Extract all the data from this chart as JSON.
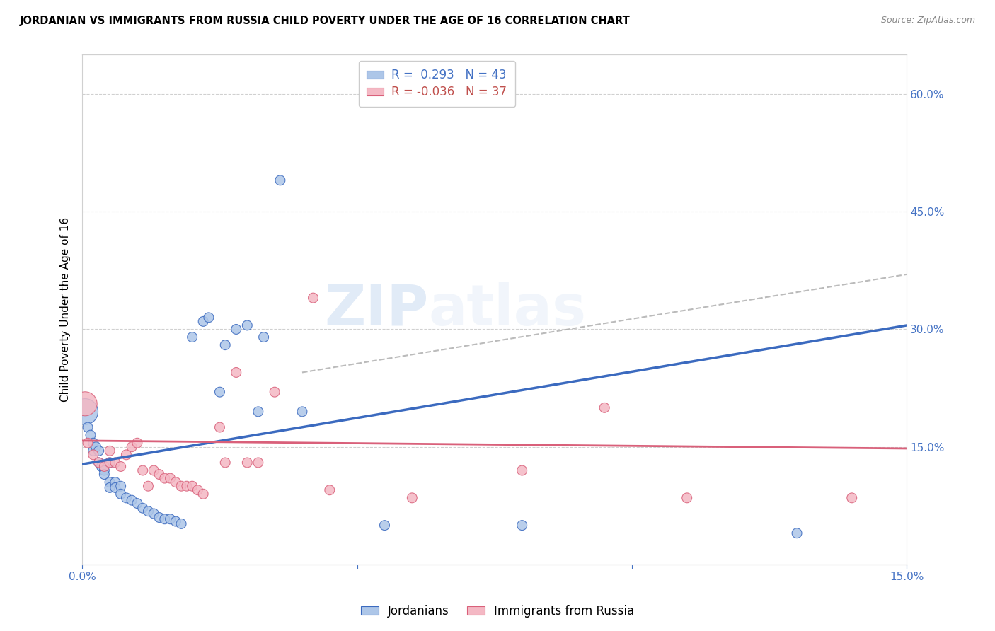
{
  "title": "JORDANIAN VS IMMIGRANTS FROM RUSSIA CHILD POVERTY UNDER THE AGE OF 16 CORRELATION CHART",
  "source": "Source: ZipAtlas.com",
  "ylabel": "Child Poverty Under the Age of 16",
  "xlim": [
    0.0,
    0.15
  ],
  "ylim": [
    0.0,
    0.65
  ],
  "x_ticks": [
    0.0,
    0.05,
    0.1,
    0.15
  ],
  "x_tick_labels": [
    "0.0%",
    "",
    "",
    "15.0%"
  ],
  "y_ticks_right": [
    0.15,
    0.3,
    0.45,
    0.6
  ],
  "y_tick_labels_right": [
    "15.0%",
    "30.0%",
    "45.0%",
    "60.0%"
  ],
  "legend_label1": "Jordanians",
  "legend_label2": "Immigrants from Russia",
  "R1": 0.293,
  "N1": 43,
  "R2": -0.036,
  "N2": 37,
  "color_blue": "#adc6e8",
  "color_pink": "#f4b8c4",
  "color_blue_line": "#3b6abf",
  "color_pink_line": "#d9607a",
  "color_blue_text": "#4472c4",
  "color_pink_text": "#c0504d",
  "scatter_blue": [
    [
      0.0005,
      0.195
    ],
    [
      0.001,
      0.175
    ],
    [
      0.0015,
      0.165
    ],
    [
      0.002,
      0.155
    ],
    [
      0.002,
      0.145
    ],
    [
      0.0025,
      0.15
    ],
    [
      0.003,
      0.145
    ],
    [
      0.003,
      0.13
    ],
    [
      0.0035,
      0.125
    ],
    [
      0.004,
      0.12
    ],
    [
      0.004,
      0.115
    ],
    [
      0.005,
      0.13
    ],
    [
      0.005,
      0.105
    ],
    [
      0.005,
      0.098
    ],
    [
      0.006,
      0.105
    ],
    [
      0.006,
      0.098
    ],
    [
      0.007,
      0.1
    ],
    [
      0.007,
      0.09
    ],
    [
      0.008,
      0.085
    ],
    [
      0.009,
      0.082
    ],
    [
      0.01,
      0.078
    ],
    [
      0.011,
      0.072
    ],
    [
      0.012,
      0.068
    ],
    [
      0.013,
      0.065
    ],
    [
      0.014,
      0.06
    ],
    [
      0.015,
      0.058
    ],
    [
      0.016,
      0.058
    ],
    [
      0.017,
      0.055
    ],
    [
      0.018,
      0.052
    ],
    [
      0.02,
      0.29
    ],
    [
      0.022,
      0.31
    ],
    [
      0.023,
      0.315
    ],
    [
      0.025,
      0.22
    ],
    [
      0.026,
      0.28
    ],
    [
      0.028,
      0.3
    ],
    [
      0.03,
      0.305
    ],
    [
      0.032,
      0.195
    ],
    [
      0.033,
      0.29
    ],
    [
      0.036,
      0.49
    ],
    [
      0.04,
      0.195
    ],
    [
      0.055,
      0.05
    ],
    [
      0.08,
      0.05
    ],
    [
      0.13,
      0.04
    ]
  ],
  "scatter_pink": [
    [
      0.0005,
      0.205
    ],
    [
      0.001,
      0.155
    ],
    [
      0.002,
      0.14
    ],
    [
      0.003,
      0.13
    ],
    [
      0.004,
      0.125
    ],
    [
      0.005,
      0.145
    ],
    [
      0.005,
      0.13
    ],
    [
      0.006,
      0.13
    ],
    [
      0.007,
      0.125
    ],
    [
      0.008,
      0.14
    ],
    [
      0.009,
      0.15
    ],
    [
      0.01,
      0.155
    ],
    [
      0.011,
      0.12
    ],
    [
      0.012,
      0.1
    ],
    [
      0.013,
      0.12
    ],
    [
      0.014,
      0.115
    ],
    [
      0.015,
      0.11
    ],
    [
      0.016,
      0.11
    ],
    [
      0.017,
      0.105
    ],
    [
      0.018,
      0.1
    ],
    [
      0.019,
      0.1
    ],
    [
      0.02,
      0.1
    ],
    [
      0.021,
      0.095
    ],
    [
      0.022,
      0.09
    ],
    [
      0.025,
      0.175
    ],
    [
      0.026,
      0.13
    ],
    [
      0.028,
      0.245
    ],
    [
      0.03,
      0.13
    ],
    [
      0.032,
      0.13
    ],
    [
      0.035,
      0.22
    ],
    [
      0.042,
      0.34
    ],
    [
      0.045,
      0.095
    ],
    [
      0.06,
      0.085
    ],
    [
      0.08,
      0.12
    ],
    [
      0.095,
      0.2
    ],
    [
      0.11,
      0.085
    ],
    [
      0.14,
      0.085
    ]
  ],
  "blue_line_x0": 0.0,
  "blue_line_y0": 0.128,
  "blue_line_x1": 0.15,
  "blue_line_y1": 0.305,
  "pink_line_x0": 0.0,
  "pink_line_y0": 0.158,
  "pink_line_x1": 0.15,
  "pink_line_y1": 0.148,
  "dash_line_x0": 0.04,
  "dash_line_y0": 0.245,
  "dash_line_x1": 0.15,
  "dash_line_y1": 0.37,
  "watermark": "ZIPatlas",
  "background_color": "#ffffff",
  "grid_color": "#d0d0d0",
  "large_blue_size": 700,
  "large_pink_size": 600
}
